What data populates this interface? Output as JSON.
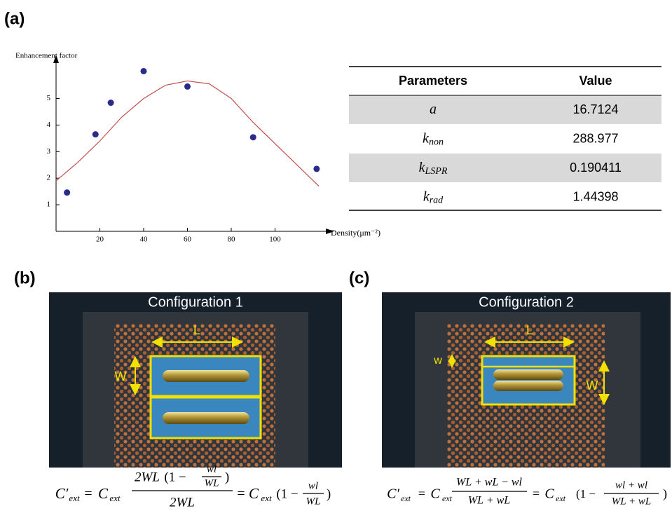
{
  "chart_data": {
    "type": "scatter",
    "panel_label": "(a)",
    "ylabel": "Enhancement factor",
    "xlabel": "Density(μm⁻²)",
    "xlim": [
      0,
      120
    ],
    "ylim": [
      0,
      6.2
    ],
    "xticks": [
      20,
      40,
      60,
      80,
      100
    ],
    "yticks": [
      1,
      2,
      3,
      4,
      5
    ],
    "series": [
      {
        "mode": "markers",
        "color": "#2b2b8c",
        "x": [
          5,
          18,
          25,
          40,
          60,
          90,
          119
        ],
        "values": [
          1.46,
          3.65,
          4.84,
          6.03,
          5.45,
          3.54,
          2.35
        ]
      },
      {
        "mode": "line",
        "color": "#c0504d",
        "x": [
          0,
          10,
          20,
          30,
          40,
          50,
          60,
          70,
          80,
          90,
          100,
          110,
          120
        ],
        "values": [
          1.9,
          2.6,
          3.4,
          4.3,
          5.0,
          5.5,
          5.66,
          5.55,
          5.0,
          4.1,
          3.3,
          2.5,
          1.7
        ]
      }
    ]
  },
  "table": {
    "header": [
      "Parameters",
      "Value"
    ],
    "rows": [
      {
        "symbol": "a",
        "value": "16.7124"
      },
      {
        "symbol": "k",
        "subscript": "non",
        "value": "288.977"
      },
      {
        "symbol": "k",
        "subscript": "LSPR",
        "value": "0.190411"
      },
      {
        "symbol": "k",
        "subscript": "rad",
        "value": "1.44398"
      }
    ]
  },
  "panels": [
    {
      "label": "(b)",
      "title": "Configuration 1",
      "length_label": "L",
      "width_label": "W",
      "formula": [
        "C′",
        "ext",
        "=",
        "C",
        "ext",
        "2WL",
        "(1 −",
        "wl",
        "WL",
        ")",
        "2WL",
        "=",
        "C",
        "ext",
        "(1 −",
        "wl",
        "WL",
        ")"
      ]
    },
    {
      "label": "(c)",
      "title": "Configuration 2",
      "length_label": "L",
      "small_width_label": "w",
      "width_label": "W",
      "formula": [
        "C′",
        "ext",
        "=",
        "C",
        "ext",
        "WL + wL − wl",
        "WL + wL",
        "=",
        "C",
        "ext",
        "(1 −",
        "wl + wl",
        "WL + wL",
        ")"
      ]
    }
  ]
}
